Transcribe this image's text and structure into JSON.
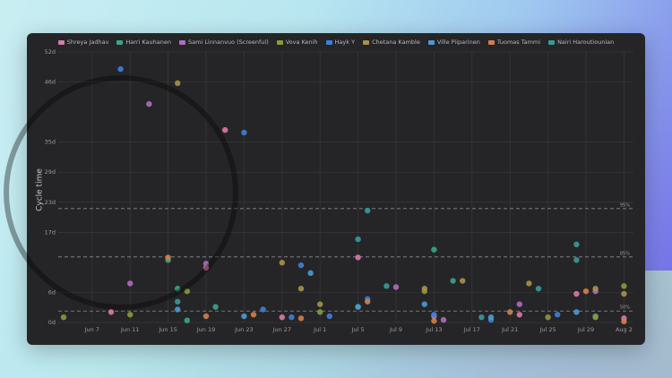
{
  "chart_data": {
    "type": "scatter",
    "y_label": "Cycle time",
    "xlim": [
      "Jun 4",
      "Aug 3"
    ],
    "xticks": [
      "Jun 7",
      "Jun 11",
      "Jun 15",
      "Jun 19",
      "Jun 23",
      "Jun 27",
      "Jul 1",
      "Jul 5",
      "Jul 9",
      "Jul 13",
      "Jul 17",
      "Jul 21",
      "Jul 25",
      "Jul 29",
      "Aug 2"
    ],
    "ylim": [
      0,
      52
    ],
    "yticks": [
      {
        "value": 0,
        "label": "0d"
      },
      {
        "value": 5.78,
        "label": "6d"
      },
      {
        "value": 17.33,
        "label": "17d"
      },
      {
        "value": 23.11,
        "label": "23d"
      },
      {
        "value": 28.89,
        "label": "29d"
      },
      {
        "value": 34.67,
        "label": "35d"
      },
      {
        "value": 46.22,
        "label": "46d"
      },
      {
        "value": 52,
        "label": "52d"
      }
    ],
    "grid": true,
    "reference_lines": [
      {
        "value": 21.9,
        "label": "95%"
      },
      {
        "value": 12.6,
        "label": "85%"
      },
      {
        "value": 2.2,
        "label": "50%"
      }
    ],
    "series": [
      {
        "name": "Shreya Jadhav",
        "color": "#d97aa8",
        "x": [
          "Jun 9",
          "Jun 21",
          "Jun 19",
          "Jul 5",
          "Jul 13",
          "Jul 22",
          "Jul 28",
          "Aug 2",
          "Jun 27"
        ],
        "values": [
          2.0,
          37,
          10.5,
          12.5,
          1.2,
          1.5,
          5.5,
          0.8,
          1.0
        ]
      },
      {
        "name": "Harri Kauhanen",
        "color": "#3aa58a",
        "x": [
          "Jun 15",
          "Jun 16",
          "Jun 20",
          "Jul 13",
          "Jul 15",
          "Jul 5",
          "Jul 30",
          "Jun 17"
        ],
        "values": [
          12,
          6.5,
          3,
          14,
          8,
          3,
          1.2,
          0.4
        ]
      },
      {
        "name": "Sami Linnanvuo (Screenful)",
        "color": "#b06cc0",
        "x": [
          "Jun 13",
          "Jun 11",
          "Jun 19",
          "Jul 9",
          "Jul 30",
          "Jul 14",
          "Jul 22"
        ],
        "values": [
          42,
          7.5,
          11.3,
          6.8,
          6,
          0.5,
          3.5
        ]
      },
      {
        "name": "Vova Kenih",
        "color": "#8a9a3a",
        "x": [
          "Jun 4",
          "Jun 11",
          "Jun 17",
          "Jul 1",
          "Jul 12",
          "Jul 25",
          "Jul 30",
          "Aug 2"
        ],
        "values": [
          1,
          1.5,
          6,
          2,
          6,
          1,
          1,
          7
        ]
      },
      {
        "name": "Hayk Y",
        "color": "#3f7fd9",
        "x": [
          "Jun 10",
          "Jun 23",
          "Jun 25",
          "Jun 29",
          "Jun 28",
          "Jul 2",
          "Jul 6",
          "Jul 13",
          "Jul 19",
          "Jul 26"
        ],
        "values": [
          48.7,
          36.5,
          2.5,
          11,
          1,
          1.2,
          4.5,
          1.5,
          0.5,
          1.5
        ]
      },
      {
        "name": "Chetana Kamble",
        "color": "#a8924a",
        "x": [
          "Jun 16",
          "Jun 27",
          "Jun 29",
          "Jul 1",
          "Jul 12",
          "Jul 16",
          "Jul 23",
          "Jul 30",
          "Aug 2"
        ],
        "values": [
          46,
          11.5,
          6.5,
          3.5,
          6.5,
          8,
          7.5,
          6.5,
          5.5
        ]
      },
      {
        "name": "Ville Piiparinen",
        "color": "#4b9bd0",
        "x": [
          "Jun 16",
          "Jun 23",
          "Jun 30",
          "Jul 5",
          "Jul 12",
          "Jul 28",
          "Jul 19"
        ],
        "values": [
          2.5,
          1.2,
          9.5,
          3,
          3.5,
          2,
          1
        ]
      },
      {
        "name": "Tuomas Tammi",
        "color": "#d4804a",
        "x": [
          "Jun 15",
          "Jun 24",
          "Jun 29",
          "Jul 6",
          "Jul 13",
          "Jul 21",
          "Jul 29",
          "Aug 2",
          "Jun 19"
        ],
        "values": [
          12.5,
          1.5,
          0.8,
          4,
          0.3,
          2,
          6,
          0.2,
          1.2
        ]
      },
      {
        "name": "Nairi Haroutiounian",
        "color": "#3a9a9a",
        "x": [
          "Jul 6",
          "Jul 5",
          "Jul 28",
          "Jul 28",
          "Jun 16",
          "Jul 18",
          "Jul 8",
          "Jul 24"
        ],
        "values": [
          21.5,
          16,
          15,
          12,
          4,
          1,
          7,
          6.5
        ]
      }
    ]
  }
}
